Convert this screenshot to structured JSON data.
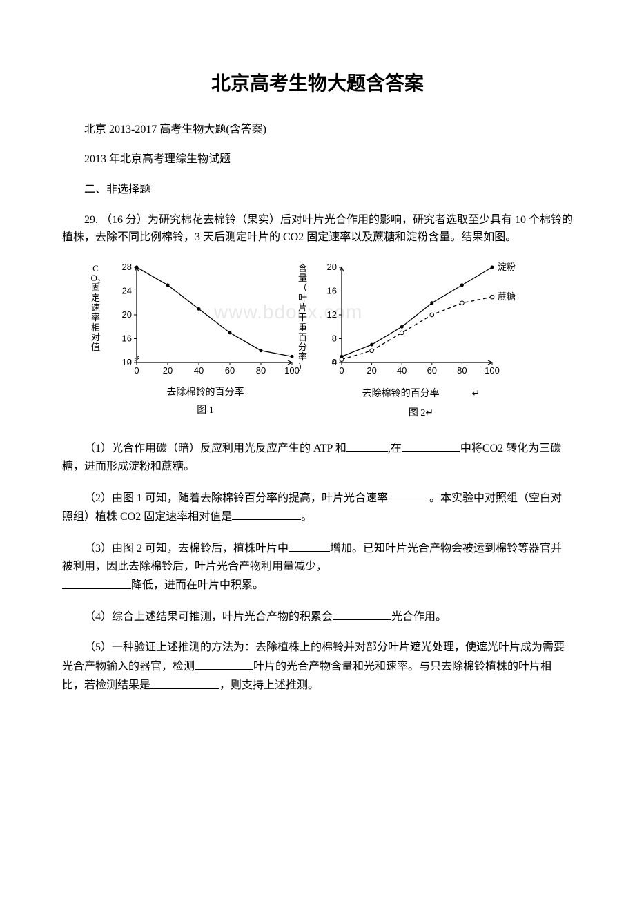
{
  "title": "北京高考生物大题含答案",
  "subtitle": "北京 2013-2017 高考生物大题(含答案)",
  "examTitle": "2013 年北京高考理综生物试题",
  "sectionHeader": "二、非选择题",
  "questionNumber": "29. （16 分）为研究棉花去棉铃（果实）后对叶片光合作用的影响，研究者选取至少具有 10 个棉铃的植株，去除不同比例棉铃，3 天后测定叶片的 CO2 固定速率以及蔗糖和淀粉含量。结果如图。",
  "q1": {
    "pre": "（1）光合作用碳（暗）反应利用光反应产生的 ATP 和",
    "mid": ",在",
    "post": "中将CO2 转化为三碳糖，进而形成淀粉和蔗糖。"
  },
  "q2": {
    "pre": "（2）由图 1 可知，随着去除棉铃百分率的提高，叶片光合速率",
    "mid": "。本实验中对照组（空白对照组）植株 CO2 固定速率相对值是",
    "post": "。"
  },
  "q3": {
    "pre": "（3）由图 2 可知，去棉铃后，植株叶片中",
    "mid": "增加。已知叶片光合产物会被运到棉铃等器官并被利用，因此去除棉铃后，叶片光合产物利用量减少，",
    "post": "降低，进而在叶片中积累。"
  },
  "q4": {
    "pre": "（4）综合上述结果可推测，叶片光合产物的积累会",
    "post": "光合作用。"
  },
  "q5": {
    "pre": "（5）一种验证上述推测的方法为：去除植株上的棉铃并对部分叶片遮光处理，使遮光叶片成为需要光合产物输入的器官，检测",
    "mid": "叶片的光合产物含量和光和速率。与只去除棉铃植株的叶片相比，若检测结果是",
    "post": "，则支持上述推测。"
  },
  "chart1": {
    "type": "line",
    "yAxisLabel": "CO₂固定速率相对值",
    "xAxisLabel": "去除棉铃的百分率",
    "caption": "图 1",
    "xlim": [
      0,
      100
    ],
    "ylim": [
      12,
      28
    ],
    "xticks": [
      0,
      20,
      40,
      60,
      80,
      100
    ],
    "yticks": [
      12,
      16,
      20,
      24,
      28
    ],
    "xvals": [
      0,
      20,
      40,
      60,
      80,
      100
    ],
    "yvals": [
      28,
      25,
      21,
      17,
      14,
      13
    ],
    "line_color": "#000000",
    "marker_color": "#000000",
    "font_size": 13
  },
  "chart2": {
    "type": "line",
    "yAxisLabel": "含量（叶片干重百分率）",
    "xAxisLabel": "去除棉铃的百分率",
    "caption": "图 2",
    "xlim": [
      0,
      100
    ],
    "ylim": [
      4,
      20
    ],
    "xticks": [
      0,
      20,
      40,
      60,
      80,
      100
    ],
    "yticks": [
      4,
      8,
      12,
      16,
      20
    ],
    "series": [
      {
        "name": "淀粉",
        "xvals": [
          0,
          20,
          40,
          60,
          80,
          100
        ],
        "yvals": [
          5,
          7,
          10,
          14,
          17,
          20
        ],
        "line_color": "#000000",
        "marker": "dot",
        "dash": "none"
      },
      {
        "name": "蔗糖",
        "xvals": [
          0,
          20,
          40,
          60,
          80,
          100
        ],
        "yvals": [
          4.5,
          6,
          9,
          12,
          14,
          15
        ],
        "line_color": "#000000",
        "marker": "circle",
        "dash": "5,4"
      }
    ],
    "font_size": 13
  },
  "watermark": "www.bdocx.com"
}
